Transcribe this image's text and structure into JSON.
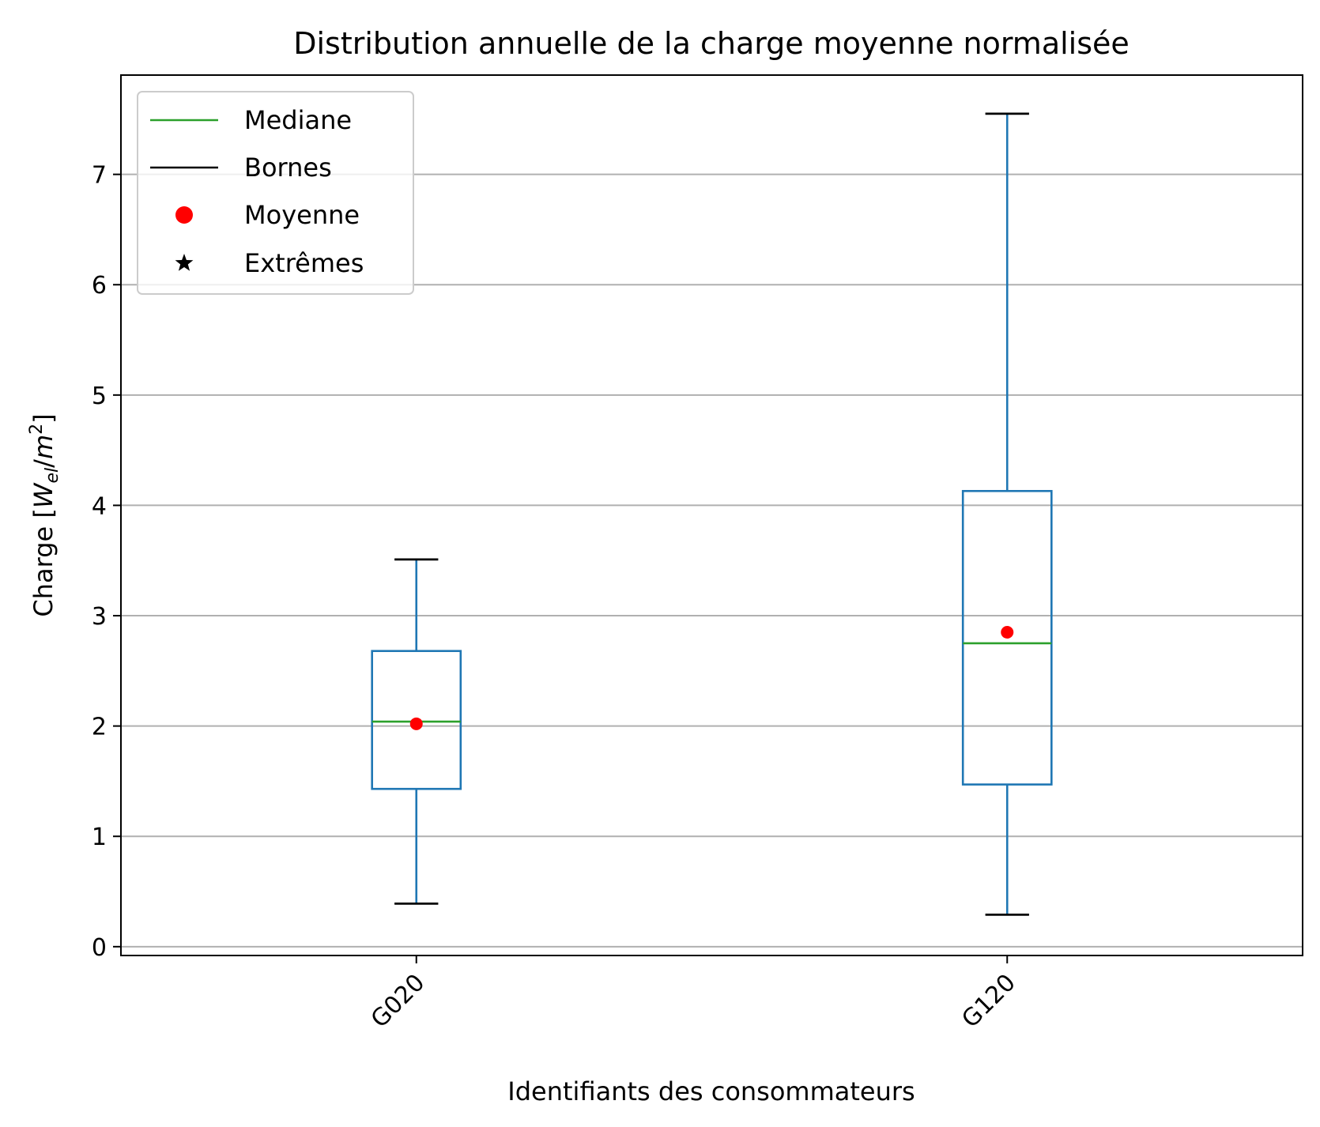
{
  "chart_data": {
    "type": "boxplot",
    "title": "Distribution annuelle de la charge moyenne normalisée",
    "xlabel": "Identifiants des consommateurs",
    "ylabel": {
      "prefix": "Charge [",
      "symbol": "W",
      "subscript": "el",
      "slash": "/",
      "unit": "m",
      "superscript": "2",
      "suffix": "]"
    },
    "ylim": [
      -0.08,
      7.9
    ],
    "yticks": [
      0,
      1,
      2,
      3,
      4,
      5,
      6,
      7
    ],
    "grid": "y",
    "categories": [
      "G020",
      "G120"
    ],
    "boxes": [
      {
        "category": "G020",
        "whisker_low": 0.39,
        "q1": 1.43,
        "median": 2.04,
        "q3": 2.68,
        "whisker_high": 3.51,
        "mean": 2.02
      },
      {
        "category": "G120",
        "whisker_low": 0.29,
        "q1": 1.47,
        "median": 2.75,
        "q3": 4.13,
        "whisker_high": 7.55,
        "mean": 2.85
      }
    ],
    "legend": {
      "placement": "top-left",
      "entries": [
        {
          "label": "Mediane",
          "marker": "line",
          "color": "#2ca02c"
        },
        {
          "label": "Bornes",
          "marker": "line",
          "color": "#000000"
        },
        {
          "label": "Moyenne",
          "marker": "circle",
          "color": "#ff0000"
        },
        {
          "label": "Extrêmes",
          "marker": "star",
          "color": "#000000"
        }
      ]
    },
    "colors": {
      "box": "#1f77b4",
      "median": "#2ca02c",
      "caps": "#000000",
      "mean": "#ff0000",
      "grid": "#b0b0b0"
    }
  }
}
